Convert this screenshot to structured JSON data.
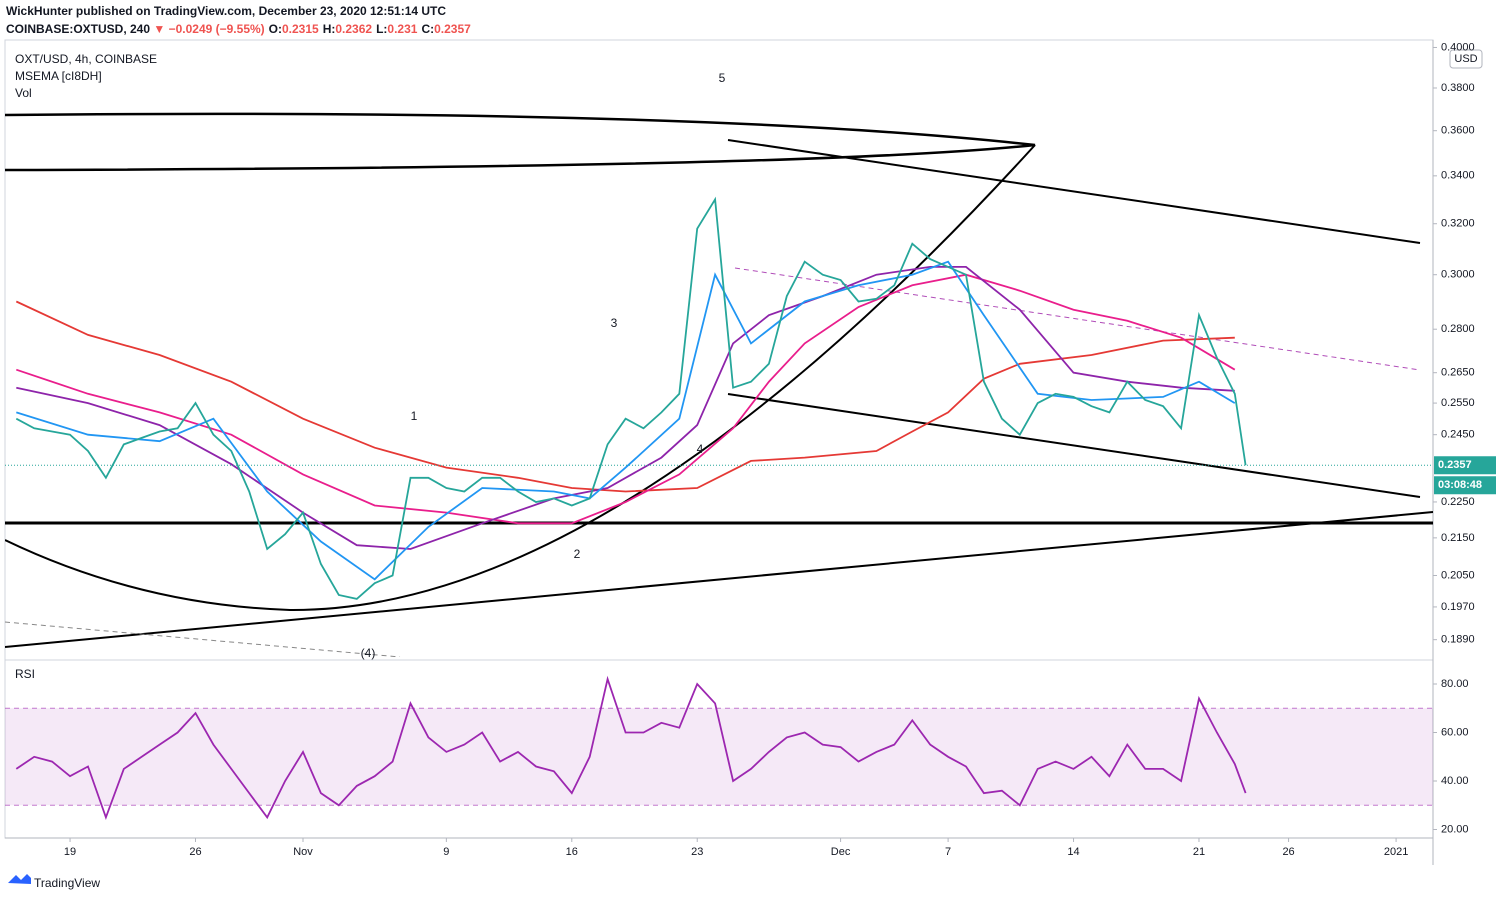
{
  "header": {
    "published": "WickHunter published on TradingView.com, December 23, 2020 12:51:14 UTC",
    "symbol": "COINBASE:OXTUSD, 240",
    "change": "▼ −0.0249 (−9.55%)",
    "ohlc": [
      {
        "label": "O:",
        "value": 0.2315
      },
      {
        "label": "H:",
        "value": 0.2362
      },
      {
        "label": "L:",
        "value": 0.231
      },
      {
        "label": "C:",
        "value": 0.2357
      }
    ],
    "brand": "TradingView"
  },
  "chart_data": [
    {
      "type": "line",
      "title": "OXT/USD, 4h, COINBASE",
      "indicator_label": "MSEMA [cI8DH]",
      "volume_label": "Vol",
      "log_scale": true,
      "currency": "USD",
      "last_price": 0.2357,
      "countdown": "03:08:48",
      "wave_labels": [
        "1",
        "2",
        "3",
        "4",
        "5",
        "(4)"
      ],
      "xlim": [
        15.37,
        95.06
      ],
      "ylim": [
        0.1849,
        0.4038
      ],
      "xticks": [
        {
          "value": 19,
          "label": "19"
        },
        {
          "value": 26,
          "label": "26"
        },
        {
          "value": 32,
          "label": "Nov"
        },
        {
          "value": 40,
          "label": "9"
        },
        {
          "value": 47,
          "label": "16"
        },
        {
          "value": 54,
          "label": "23"
        },
        {
          "value": 62,
          "label": "Dec"
        },
        {
          "value": 68,
          "label": "7"
        },
        {
          "value": 75,
          "label": "14"
        },
        {
          "value": 82,
          "label": "21"
        },
        {
          "value": 87,
          "label": "26"
        },
        {
          "value": 93,
          "label": "2021"
        }
      ],
      "yticks": [
        {
          "value": 0.4,
          "label": "0.4000"
        },
        {
          "value": 0.38,
          "label": "0.3800"
        },
        {
          "value": 0.36,
          "label": "0.3600"
        },
        {
          "value": 0.34,
          "label": "0.3400"
        },
        {
          "value": 0.32,
          "label": "0.3200"
        },
        {
          "value": 0.3,
          "label": "0.3000"
        },
        {
          "value": 0.28,
          "label": "0.2800"
        },
        {
          "value": 0.265,
          "label": "0.2650"
        },
        {
          "value": 0.255,
          "label": "0.2550"
        },
        {
          "value": 0.245,
          "label": "0.2450"
        },
        {
          "value": 0.225,
          "label": "0.2250"
        },
        {
          "value": 0.215,
          "label": "0.2150"
        },
        {
          "value": 0.205,
          "label": "0.2050"
        },
        {
          "value": 0.197,
          "label": "0.1970"
        },
        {
          "value": 0.189,
          "label": "0.1890"
        }
      ],
      "series": [
        {
          "color": "#e53935",
          "x": [
            16,
            20,
            24,
            28,
            32,
            36,
            40,
            44,
            47,
            50,
            54,
            57,
            60,
            64,
            66,
            68,
            70,
            72,
            76,
            80,
            84
          ],
          "values": [
            0.29,
            0.278,
            0.271,
            0.262,
            0.25,
            0.241,
            0.235,
            0.232,
            0.229,
            0.228,
            0.229,
            0.237,
            0.238,
            0.24,
            0.246,
            0.252,
            0.263,
            0.268,
            0.271,
            0.276,
            0.277
          ]
        },
        {
          "color": "#e91e8c",
          "x": [
            16,
            20,
            24,
            28,
            32,
            36,
            40,
            44,
            47,
            50,
            53,
            56,
            58,
            60,
            63,
            66,
            69,
            72,
            75,
            78,
            81,
            84
          ],
          "values": [
            0.266,
            0.258,
            0.252,
            0.245,
            0.233,
            0.224,
            0.222,
            0.219,
            0.219,
            0.225,
            0.233,
            0.247,
            0.262,
            0.275,
            0.288,
            0.296,
            0.3,
            0.294,
            0.287,
            0.283,
            0.277,
            0.266
          ]
        },
        {
          "color": "#8e24aa",
          "x": [
            16,
            20,
            24,
            28,
            32,
            35,
            38,
            42,
            46,
            49,
            52,
            54,
            56,
            58,
            61,
            64,
            67,
            69,
            72,
            75,
            78,
            81,
            84
          ],
          "values": [
            0.26,
            0.255,
            0.248,
            0.236,
            0.222,
            0.213,
            0.212,
            0.219,
            0.226,
            0.229,
            0.238,
            0.248,
            0.275,
            0.285,
            0.292,
            0.3,
            0.303,
            0.303,
            0.287,
            0.265,
            0.262,
            0.26,
            0.259
          ]
        },
        {
          "color": "#2196f3",
          "x": [
            16,
            20,
            24,
            27,
            30,
            33,
            36,
            39,
            42,
            46,
            48,
            50,
            53,
            55,
            57,
            60,
            63,
            66,
            68,
            70,
            73,
            76,
            80,
            82,
            84
          ],
          "values": [
            0.252,
            0.245,
            0.243,
            0.25,
            0.228,
            0.214,
            0.204,
            0.218,
            0.229,
            0.228,
            0.226,
            0.235,
            0.25,
            0.3,
            0.275,
            0.29,
            0.296,
            0.3,
            0.305,
            0.285,
            0.258,
            0.256,
            0.257,
            0.262,
            0.255
          ]
        },
        {
          "color": "#26a69a",
          "x": [
            16,
            17,
            18,
            19,
            20,
            21,
            22,
            23,
            24,
            25,
            26,
            27,
            28,
            29,
            30,
            31,
            32,
            33,
            34,
            35,
            36,
            37,
            38,
            39,
            40,
            41,
            42,
            43,
            44,
            45,
            46,
            47,
            48,
            49,
            50,
            51,
            52,
            53,
            54,
            55,
            56,
            57,
            58,
            59,
            60,
            61,
            62,
            63,
            64,
            65,
            66,
            67,
            68,
            69,
            70,
            71,
            72,
            73,
            74,
            75,
            76,
            77,
            78,
            79,
            80,
            81,
            82,
            83,
            84,
            84.6
          ],
          "values": [
            0.25,
            0.247,
            0.246,
            0.245,
            0.24,
            0.232,
            0.242,
            0.244,
            0.246,
            0.247,
            0.255,
            0.245,
            0.24,
            0.228,
            0.212,
            0.216,
            0.222,
            0.208,
            0.2,
            0.199,
            0.203,
            0.205,
            0.232,
            0.232,
            0.229,
            0.228,
            0.232,
            0.232,
            0.228,
            0.225,
            0.226,
            0.224,
            0.226,
            0.242,
            0.25,
            0.247,
            0.252,
            0.258,
            0.318,
            0.33,
            0.26,
            0.262,
            0.268,
            0.292,
            0.305,
            0.3,
            0.298,
            0.29,
            0.291,
            0.296,
            0.312,
            0.306,
            0.303,
            0.3,
            0.262,
            0.25,
            0.245,
            0.255,
            0.258,
            0.257,
            0.254,
            0.252,
            0.262,
            0.256,
            0.254,
            0.247,
            0.285,
            0.27,
            0.258,
            0.2357
          ]
        }
      ]
    },
    {
      "type": "line",
      "title": "RSI",
      "ylim": [
        16.5,
        89.07
      ],
      "band": [
        30,
        70
      ],
      "yticks": [
        {
          "value": 20,
          "label": "20.00"
        },
        {
          "value": 40,
          "label": "40.00"
        },
        {
          "value": 60,
          "label": "60.00"
        },
        {
          "value": 80,
          "label": "80.00"
        }
      ],
      "series": [
        {
          "color": "#9c27b0",
          "x": [
            16,
            17,
            18,
            19,
            20,
            21,
            22,
            23,
            24,
            25,
            26,
            27,
            28,
            29,
            30,
            31,
            32,
            33,
            34,
            35,
            36,
            37,
            38,
            39,
            40,
            41,
            42,
            43,
            44,
            45,
            46,
            47,
            48,
            49,
            50,
            51,
            52,
            53,
            54,
            55,
            56,
            57,
            58,
            59,
            60,
            61,
            62,
            63,
            64,
            65,
            66,
            67,
            68,
            69,
            70,
            71,
            72,
            73,
            74,
            75,
            76,
            77,
            78,
            79,
            80,
            81,
            82,
            83,
            84,
            84.6
          ],
          "values": [
            45,
            50,
            48,
            42,
            46,
            25,
            45,
            50,
            55,
            60,
            68,
            55,
            45,
            35,
            25,
            40,
            52,
            35,
            30,
            38,
            42,
            48,
            72,
            58,
            52,
            55,
            60,
            48,
            52,
            46,
            44,
            35,
            50,
            82,
            60,
            60,
            64,
            62,
            80,
            72,
            40,
            45,
            52,
            58,
            60,
            55,
            54,
            48,
            52,
            55,
            65,
            55,
            50,
            46,
            35,
            36,
            30,
            45,
            48,
            45,
            50,
            42,
            55,
            45,
            45,
            40,
            74,
            60,
            47,
            35
          ]
        }
      ]
    }
  ]
}
